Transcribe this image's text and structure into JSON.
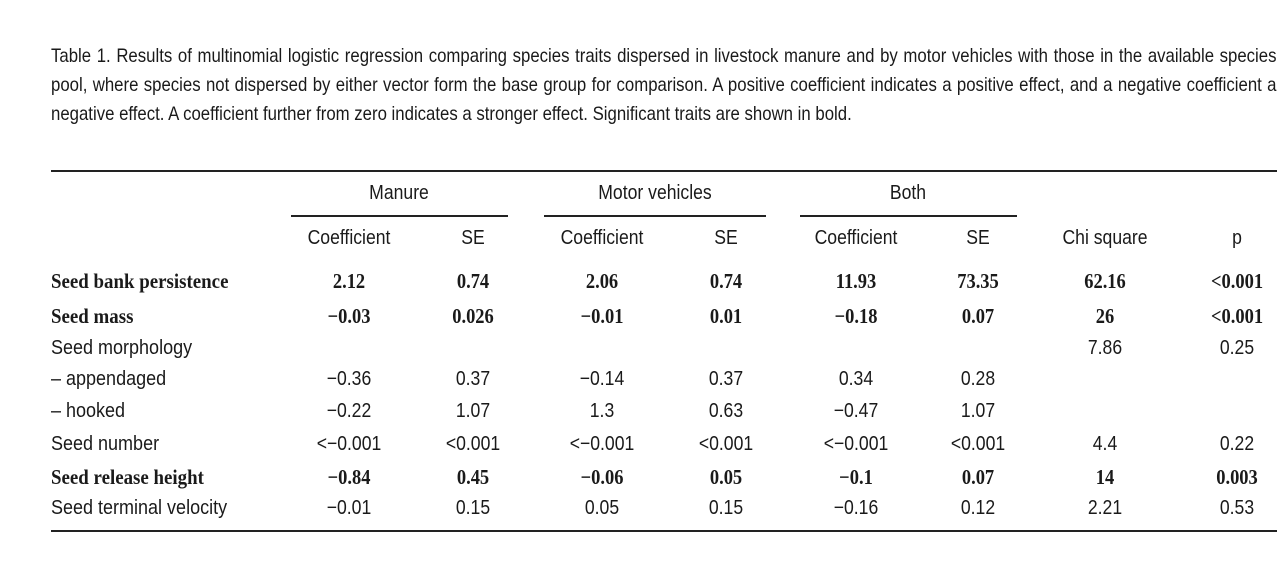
{
  "caption": "Table 1. Results of multinomial logistic regression comparing species traits dispersed in livestock manure and by motor vehicles with those in the available species pool, where species not dispersed by either vector form the base group for comparison. A positive coefficient indicates a positive effect, and a negative coefficient a negative effect. A coefficient further from zero indicates a stronger effect. Significant traits are shown in bold.",
  "groups": [
    "Manure",
    "Motor vehicles",
    "Both"
  ],
  "columns": [
    "Coefficient",
    "SE",
    "Coefficient",
    "SE",
    "Coefficient",
    "SE",
    "Chi square",
    "p"
  ],
  "rows": [
    {
      "label": "Seed bank persistence",
      "bold": true,
      "cells": [
        "2.12",
        "0.74",
        "2.06",
        "0.74",
        "11.93",
        "73.35",
        "62.16",
        "<0.001"
      ]
    },
    {
      "label": "Seed mass",
      "bold": true,
      "cells": [
        "−0.03",
        "0.026",
        "−0.01",
        "0.01",
        "−0.18",
        "0.07",
        "26",
        "<0.001"
      ]
    },
    {
      "label": "Seed morphology",
      "bold": false,
      "cells": [
        "",
        "",
        "",
        "",
        "",
        "",
        "7.86",
        "0.25"
      ]
    },
    {
      "label": "– appendaged",
      "bold": false,
      "indent": true,
      "cells": [
        "−0.36",
        "0.37",
        "−0.14",
        "0.37",
        "0.34",
        "0.28",
        "",
        ""
      ]
    },
    {
      "label": "– hooked",
      "bold": false,
      "indent": true,
      "cells": [
        "−0.22",
        "1.07",
        "1.3",
        "0.63",
        "−0.47",
        "1.07",
        "",
        ""
      ]
    },
    {
      "label": "Seed number",
      "bold": false,
      "cells": [
        "<−0.001",
        "<0.001",
        "<−0.001",
        "<0.001",
        "<−0.001",
        "<0.001",
        "4.4",
        "0.22"
      ]
    },
    {
      "label": "Seed release height",
      "bold": true,
      "cells": [
        "−0.84",
        "0.45",
        "−0.06",
        "0.05",
        "−0.1",
        "0.07",
        "14",
        "0.003"
      ]
    },
    {
      "label": "Seed terminal velocity",
      "bold": false,
      "cells": [
        "−0.01",
        "0.15",
        "0.05",
        "0.15",
        "−0.16",
        "0.12",
        "2.21",
        "0.53"
      ]
    }
  ]
}
